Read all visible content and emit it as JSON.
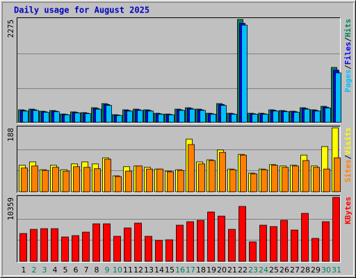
{
  "chart_data": [
    {
      "type": "bar",
      "title": "Daily usage for August 2025",
      "legend_separator": "/",
      "grid_divisions": 3,
      "ylim": [
        0,
        2275
      ],
      "yticks": [
        2275
      ],
      "series": [
        {
          "name": "Hits",
          "color": "#00805c",
          "values": [
            277,
            292,
            246,
            261,
            184,
            231,
            215,
            323,
            415,
            169,
            277,
            292,
            277,
            200,
            184,
            292,
            323,
            292,
            200,
            415,
            200,
            2275,
            200,
            200,
            277,
            261,
            246,
            323,
            277,
            354,
            1214
          ]
        },
        {
          "name": "Files",
          "color": "#0000ff",
          "values": [
            263,
            277,
            234,
            248,
            175,
            219,
            204,
            307,
            394,
            161,
            263,
            277,
            263,
            190,
            175,
            277,
            307,
            277,
            190,
            394,
            190,
            2190,
            190,
            190,
            263,
            248,
            234,
            307,
            263,
            336,
            1153
          ]
        },
        {
          "name": "Pages",
          "color": "#00c0ff",
          "values": [
            249,
            263,
            221,
            235,
            166,
            208,
            194,
            291,
            374,
            152,
            249,
            263,
            249,
            180,
            166,
            263,
            291,
            263,
            180,
            374,
            180,
            2150,
            180,
            180,
            249,
            235,
            221,
            291,
            249,
            319,
            1093
          ]
        }
      ]
    },
    {
      "type": "bar",
      "legend_separator": "/",
      "grid_divisions": 3,
      "ylim": [
        0,
        188
      ],
      "yticks": [
        188
      ],
      "series": [
        {
          "name": "Visits",
          "color": "#ffff00",
          "values": [
            78,
            88,
            65,
            78,
            65,
            82,
            88,
            82,
            100,
            47,
            74,
            76,
            72,
            67,
            61,
            65,
            155,
            88,
            94,
            123,
            67,
            110,
            55,
            67,
            80,
            76,
            78,
            108,
            76,
            133,
            188
          ]
        },
        {
          "name": "Sites",
          "color": "#ff8000",
          "values": [
            70,
            76,
            63,
            72,
            61,
            74,
            72,
            68,
            96,
            45,
            61,
            76,
            67,
            67,
            59,
            63,
            139,
            82,
            92,
            116,
            65,
            108,
            53,
            65,
            78,
            72,
            76,
            92,
            72,
            67,
            100
          ]
        }
      ]
    },
    {
      "type": "bar",
      "grid_divisions": 3,
      "ylim": [
        0,
        10359
      ],
      "yticks": [
        10359
      ],
      "categories": [
        "1",
        "2",
        "3",
        "4",
        "5",
        "6",
        "7",
        "8",
        "9",
        "10",
        "11",
        "12",
        "13",
        "14",
        "15",
        "16",
        "17",
        "18",
        "19",
        "20",
        "21",
        "22",
        "23",
        "24",
        "25",
        "26",
        "27",
        "28",
        "29",
        "30",
        "31"
      ],
      "category_colors": [
        "#000000",
        "#00805c",
        "#00805c",
        "#000000",
        "#000000",
        "#000000",
        "#000000",
        "#000000",
        "#00805c",
        "#00805c",
        "#000000",
        "#000000",
        "#000000",
        "#000000",
        "#000000",
        "#00805c",
        "#00805c",
        "#000000",
        "#000000",
        "#000000",
        "#000000",
        "#000000",
        "#00805c",
        "#00805c",
        "#000000",
        "#000000",
        "#000000",
        "#000000",
        "#000000",
        "#00805c",
        "#00805c"
      ],
      "series": [
        {
          "name": "KBytes",
          "color": "#ff0000",
          "values": [
            4504,
            5180,
            5292,
            5292,
            3941,
            4166,
            4729,
            6080,
            6080,
            4054,
            5405,
            6193,
            4054,
            3378,
            3491,
            5855,
            6418,
            6643,
            7994,
            7319,
            5180,
            8895,
            3153,
            5855,
            5630,
            6643,
            5067,
            7769,
            3716,
            6418,
            10359
          ]
        }
      ]
    }
  ]
}
